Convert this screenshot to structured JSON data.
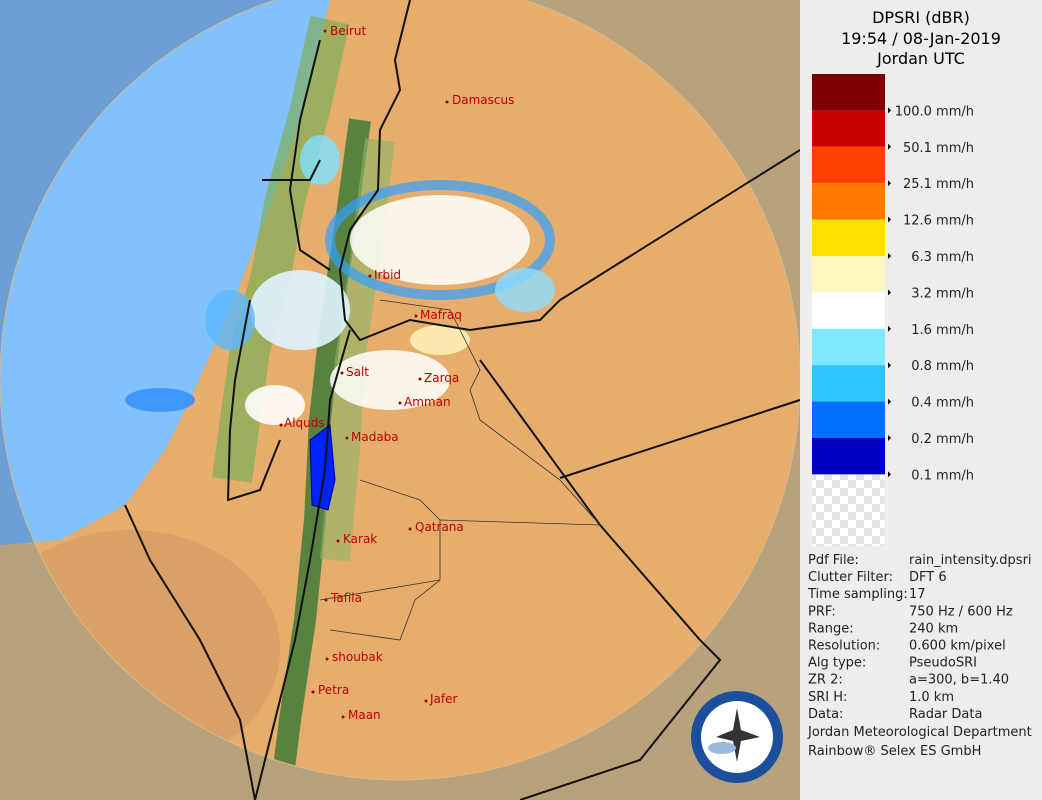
{
  "header": {
    "lines": [
      "DPSRI (dBR)",
      "19:54 / 08-Jan-2019",
      "Jordan UTC"
    ]
  },
  "legend": [
    {
      "label": "100.0 mm/h",
      "color": "#7f0000"
    },
    {
      "label": "50.1 mm/h",
      "color": "#cc0000"
    },
    {
      "label": "25.1 mm/h",
      "color": "#ff4000"
    },
    {
      "label": "12.6 mm/h",
      "color": "#ff7800"
    },
    {
      "label": "6.3 mm/h",
      "color": "#ffe000"
    },
    {
      "label": "3.2 mm/h",
      "color": "#fff6c0"
    },
    {
      "label": "1.6 mm/h",
      "color": "#ffffff"
    },
    {
      "label": "0.8 mm/h",
      "color": "#7fe9ff"
    },
    {
      "label": "0.4 mm/h",
      "color": "#30c4ff"
    },
    {
      "label": "0.2 mm/h",
      "color": "#0070ff"
    },
    {
      "label": "0.1 mm/h",
      "color": "#0000c0"
    }
  ],
  "info": [
    [
      "Pdf File:",
      "rain_intensity.dpsri"
    ],
    [
      "Clutter Filter:",
      "DFT 6"
    ],
    [
      "Time sampling:",
      "17"
    ],
    [
      "PRF:",
      "750 Hz / 600 Hz"
    ],
    [
      "Range:",
      "240 km"
    ],
    [
      "Resolution:",
      "0.600 km/pixel"
    ],
    [
      "Alg type:",
      "PseudoSRI"
    ],
    [
      "ZR 2:",
      "a=300, b=1.40"
    ],
    [
      "SRI H:",
      "1.0 km"
    ],
    [
      "Data:",
      "Radar Data"
    ]
  ],
  "footer": [
    "Jordan Meteorological Department",
    "Rainbow® Selex ES GmbH"
  ],
  "cities": [
    "Beirut",
    "Damascus",
    "Irbid",
    "Mafraq",
    "Salt",
    "Zarqa",
    "Amman",
    "Alquds",
    "Madaba",
    "Qatrana",
    "Karak",
    "Tafila",
    "shoubak",
    "Petra",
    "Jafer",
    "Maan"
  ]
}
